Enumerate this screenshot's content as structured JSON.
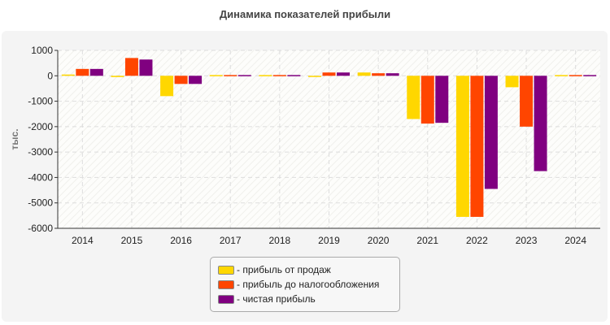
{
  "chart_data": {
    "type": "bar",
    "title": "Динамика показателей прибыли",
    "ylabel": "тыс.",
    "xlabel": "",
    "ylim": [
      -6000,
      1000
    ],
    "yticks": [
      1000,
      0,
      -1000,
      -2000,
      -3000,
      -4000,
      -5000,
      -6000
    ],
    "grid": true,
    "legend_position": "bottom",
    "categories": [
      "2014",
      "2015",
      "2016",
      "2017",
      "2018",
      "2019",
      "2020",
      "2021",
      "2022",
      "2023",
      "2024"
    ],
    "series": [
      {
        "name": "прибыль от продаж",
        "color": "#FFD700",
        "values": [
          50,
          -50,
          -800,
          30,
          30,
          -10,
          130,
          -1700,
          -5550,
          -450,
          30
        ]
      },
      {
        "name": "прибыль до налогообложения",
        "color": "#FF4500",
        "values": [
          270,
          700,
          -320,
          30,
          30,
          130,
          100,
          -1880,
          -5550,
          -2000,
          30
        ]
      },
      {
        "name": "чистая прибыль",
        "color": "#800080",
        "values": [
          270,
          640,
          -320,
          30,
          30,
          130,
          100,
          -1850,
          -4450,
          -3750,
          30
        ]
      }
    ]
  }
}
